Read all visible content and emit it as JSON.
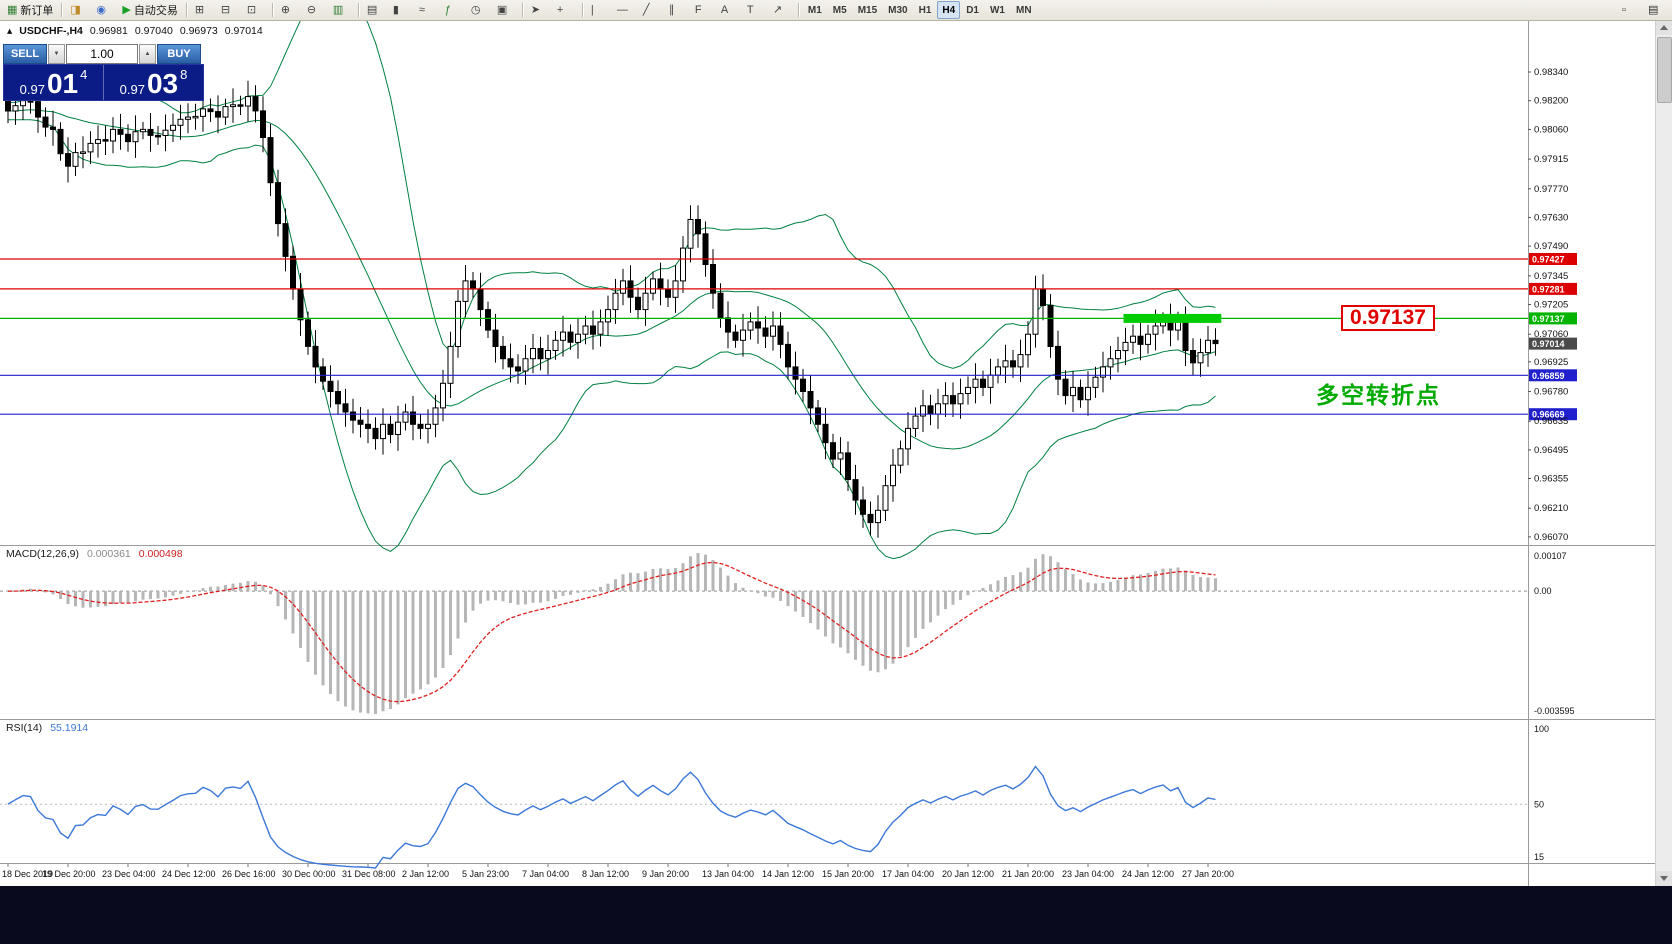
{
  "toolbar": {
    "items": [
      {
        "type": "button",
        "name": "new-order-button",
        "glyph": "▦",
        "glyph_color": "#2f7d32",
        "label": "新订单"
      },
      {
        "type": "sep"
      },
      {
        "type": "button",
        "name": "layout-profile-icon",
        "glyph": "◨",
        "glyph_color": "#c08a28"
      },
      {
        "type": "button",
        "name": "refresh-icon",
        "glyph": "◉",
        "glyph_color": "#3a6cc8"
      },
      {
        "type": "button",
        "name": "autotrading-button",
        "glyph": "▶",
        "glyph_color": "#18a028",
        "label": "自动交易"
      },
      {
        "type": "sep"
      },
      {
        "type": "button",
        "name": "tile-windows-icon",
        "glyph": "⊞",
        "glyph_color": "#444444"
      },
      {
        "type": "button",
        "name": "cascade-windows-icon",
        "glyph": "⊟",
        "glyph_color": "#444444"
      },
      {
        "type": "button",
        "name": "arrange-windows-icon",
        "glyph": "⊡",
        "glyph_color": "#444444"
      },
      {
        "type": "sep"
      },
      {
        "type": "button",
        "name": "zoom-in-icon",
        "glyph": "⊕",
        "glyph_color": "#444444"
      },
      {
        "type": "button",
        "name": "zoom-out-icon",
        "glyph": "⊖",
        "glyph_color": "#444444"
      },
      {
        "type": "button",
        "name": "auto-scroll-icon",
        "glyph": "▥",
        "glyph_color": "#2f7d32"
      },
      {
        "type": "sep"
      },
      {
        "type": "button",
        "name": "bar-chart-icon",
        "glyph": "▤",
        "glyph_color": "#444444"
      },
      {
        "type": "button",
        "name": "candlestick-chart-icon",
        "glyph": "▮",
        "glyph_color": "#444444"
      },
      {
        "type": "button",
        "name": "line-chart-icon",
        "glyph": "≈",
        "glyph_color": "#444444"
      },
      {
        "type": "button",
        "name": "indicators-icon",
        "glyph": "ƒ",
        "glyph_color": "#2f7d32"
      },
      {
        "type": "button",
        "name": "periods-icon",
        "glyph": "◷",
        "glyph_color": "#444444"
      },
      {
        "type": "button",
        "name": "templates-icon",
        "glyph": "▣",
        "glyph_color": "#444444"
      },
      {
        "type": "sep"
      },
      {
        "type": "button",
        "name": "cursor-icon",
        "glyph": "➤",
        "glyph_color": "#444444"
      },
      {
        "type": "button",
        "name": "crosshair-icon",
        "glyph": "+",
        "glyph_color": "#444444"
      },
      {
        "type": "sep"
      },
      {
        "type": "button",
        "name": "vertical-line-icon",
        "glyph": "|",
        "glyph_color": "#444444"
      },
      {
        "type": "button",
        "name": "horizontal-line-icon",
        "glyph": "—",
        "glyph_color": "#444444"
      },
      {
        "type": "button",
        "name": "trendline-icon",
        "glyph": "╱",
        "glyph_color": "#444444"
      },
      {
        "type": "button",
        "name": "channel-icon",
        "glyph": "∥",
        "glyph_color": "#444444"
      },
      {
        "type": "button",
        "name": "fibonacci-icon",
        "glyph": "F",
        "glyph_color": "#444444"
      },
      {
        "type": "button",
        "name": "text-icon",
        "glyph": "A",
        "glyph_color": "#444444"
      },
      {
        "type": "button",
        "name": "text-label-icon",
        "glyph": "T",
        "glyph_color": "#444444"
      },
      {
        "type": "button",
        "name": "arrow-tools-icon",
        "glyph": "↗",
        "glyph_color": "#444444"
      },
      {
        "type": "sep"
      }
    ],
    "timeframes": [
      "M1",
      "M5",
      "M15",
      "M30",
      "H1",
      "H4",
      "D1",
      "W1",
      "MN"
    ],
    "active_timeframe": "H4",
    "right_items": [
      {
        "name": "new-chart-window-icon",
        "glyph": "▫"
      },
      {
        "name": "window-list-icon",
        "glyph": "▤"
      }
    ]
  },
  "chart_header": {
    "collapse_glyph": "▴",
    "symbol": "USDCHF-,H4",
    "open": "0.96981",
    "high": "0.97040",
    "low": "0.96973",
    "close": "0.97014"
  },
  "trade_panel": {
    "sell_label": "SELL",
    "buy_label": "BUY",
    "volume": "1.00",
    "step_down_glyph": "▼",
    "step_up_glyph": "▲",
    "sell_small": "0.97",
    "sell_big": "01",
    "sell_sup": "4",
    "buy_small": "0.97",
    "buy_big": "03",
    "buy_sup": "8"
  },
  "price_axis": {
    "labels": [
      "0.98340",
      "0.98200",
      "0.98060",
      "0.97915",
      "0.97770",
      "0.97630",
      "0.97490",
      "0.97345",
      "0.97205",
      "0.97060",
      "0.96925",
      "0.96780",
      "0.96635",
      "0.96495",
      "0.96355",
      "0.96210",
      "0.96070"
    ]
  },
  "time_axis": {
    "labels": [
      "18 Dec 2019",
      "19 Dec 20:00",
      "23 Dec 04:00",
      "24 Dec 12:00",
      "26 Dec 16:00",
      "30 Dec 00:00",
      "31 Dec 08:00",
      "2 Jan 12:00",
      "5 Jan 23:00",
      "7 Jan 04:00",
      "8 Jan 12:00",
      "9 Jan 20:00",
      "13 Jan 04:00",
      "14 Jan 12:00",
      "15 Jan 20:00",
      "17 Jan 04:00",
      "20 Jan 12:00",
      "21 Jan 20:00",
      "23 Jan 04:00",
      "24 Jan 12:00",
      "27 Jan 20:00"
    ]
  },
  "macd": {
    "name": "MACD(12,26,9)",
    "main_value": "0.000361",
    "signal_value": "0.000498",
    "axis_labels": [
      "0.00107",
      "0.00",
      "-0.003595"
    ]
  },
  "rsi": {
    "name": "RSI(14)",
    "value": "55.1914",
    "axis_labels": [
      "100",
      "50",
      "15"
    ]
  },
  "annotations": {
    "big_price_label": "0.97137",
    "cn_note": "多空转折点"
  },
  "chart_data": {
    "type": "candlestick",
    "symbol": "USDCHF",
    "timeframe": "H4",
    "bars": 162,
    "visible_price_range": [
      0.9605,
      0.98555
    ],
    "last_quote": {
      "bid": 0.97014,
      "label": "0.97014",
      "tag_color": "#4a4a4a"
    },
    "horizontal_lines": [
      {
        "price": 0.97427,
        "label": "0.97427",
        "color": "#dd0000"
      },
      {
        "price": 0.97281,
        "label": "0.97281",
        "color": "#dd0000"
      },
      {
        "price": 0.97137,
        "label": "0.97137",
        "color": "#00b400"
      },
      {
        "price": 0.96859,
        "label": "0.96859",
        "color": "#2020cc"
      },
      {
        "price": 0.96669,
        "label": "0.96669",
        "color": "#2020cc"
      }
    ],
    "highlight": {
      "price": 0.97137,
      "from_bar": 149,
      "to_bar": 161.5,
      "color": "#00cc00",
      "thickness": 9
    },
    "indicators": [
      {
        "type": "bollinger_bands",
        "period": 20,
        "deviation": 2,
        "color": "#008040"
      },
      {
        "type": "macd",
        "fast": 12,
        "slow": 26,
        "signal": 9,
        "main_color": "#b6b6b6",
        "signal_color": "#e02020",
        "values": [
          0.000361,
          0.000498
        ]
      },
      {
        "type": "rsi",
        "period": 14,
        "color": "#3c78d8",
        "value": 55.1914
      }
    ],
    "close_anchors": [
      [
        0,
        0.9815
      ],
      [
        2,
        0.982
      ],
      [
        4,
        0.9812
      ],
      [
        6,
        0.9806
      ],
      [
        8,
        0.9788
      ],
      [
        10,
        0.9795
      ],
      [
        12,
        0.9801
      ],
      [
        14,
        0.9806
      ],
      [
        16,
        0.98
      ],
      [
        18,
        0.9806
      ],
      [
        20,
        0.9803
      ],
      [
        22,
        0.9808
      ],
      [
        24,
        0.9812
      ],
      [
        26,
        0.9816
      ],
      [
        28,
        0.9812
      ],
      [
        30,
        0.9818
      ],
      [
        32,
        0.9822
      ],
      [
        33,
        0.9815
      ],
      [
        34,
        0.9802
      ],
      [
        35,
        0.978
      ],
      [
        36,
        0.976
      ],
      [
        37,
        0.9744
      ],
      [
        38,
        0.9728
      ],
      [
        39,
        0.9713
      ],
      [
        40,
        0.97
      ],
      [
        41,
        0.969
      ],
      [
        42,
        0.9683
      ],
      [
        43,
        0.9678
      ],
      [
        44,
        0.9672
      ],
      [
        45,
        0.9668
      ],
      [
        46,
        0.9664
      ],
      [
        47,
        0.9662
      ],
      [
        48,
        0.966
      ],
      [
        49,
        0.9655
      ],
      [
        50,
        0.9662
      ],
      [
        51,
        0.9657
      ],
      [
        52,
        0.9663
      ],
      [
        53,
        0.9668
      ],
      [
        54,
        0.9662
      ],
      [
        55,
        0.966
      ],
      [
        56,
        0.9662
      ],
      [
        57,
        0.967
      ],
      [
        58,
        0.9682
      ],
      [
        59,
        0.97
      ],
      [
        60,
        0.9722
      ],
      [
        61,
        0.9732
      ],
      [
        62,
        0.9728
      ],
      [
        63,
        0.9718
      ],
      [
        64,
        0.9708
      ],
      [
        65,
        0.97
      ],
      [
        66,
        0.9694
      ],
      [
        67,
        0.969
      ],
      [
        68,
        0.9688
      ],
      [
        69,
        0.9694
      ],
      [
        70,
        0.9699
      ],
      [
        71,
        0.9694
      ],
      [
        72,
        0.9698
      ],
      [
        73,
        0.9703
      ],
      [
        74,
        0.9707
      ],
      [
        75,
        0.9702
      ],
      [
        76,
        0.9706
      ],
      [
        77,
        0.971
      ],
      [
        78,
        0.9706
      ],
      [
        79,
        0.9712
      ],
      [
        80,
        0.9718
      ],
      [
        81,
        0.9726
      ],
      [
        82,
        0.9732
      ],
      [
        83,
        0.9724
      ],
      [
        84,
        0.9718
      ],
      [
        85,
        0.9726
      ],
      [
        86,
        0.9733
      ],
      [
        87,
        0.9728
      ],
      [
        88,
        0.9724
      ],
      [
        89,
        0.9732
      ],
      [
        90,
        0.9748
      ],
      [
        91,
        0.9762
      ],
      [
        92,
        0.9755
      ],
      [
        93,
        0.974
      ],
      [
        94,
        0.9726
      ],
      [
        95,
        0.9714
      ],
      [
        96,
        0.9707
      ],
      [
        97,
        0.9703
      ],
      [
        98,
        0.9708
      ],
      [
        99,
        0.9712
      ],
      [
        100,
        0.9709
      ],
      [
        101,
        0.9705
      ],
      [
        102,
        0.971
      ],
      [
        103,
        0.9701
      ],
      [
        104,
        0.969
      ],
      [
        105,
        0.9684
      ],
      [
        106,
        0.9678
      ],
      [
        107,
        0.967
      ],
      [
        108,
        0.9662
      ],
      [
        109,
        0.9653
      ],
      [
        110,
        0.9645
      ],
      [
        111,
        0.9648
      ],
      [
        112,
        0.9635
      ],
      [
        113,
        0.9625
      ],
      [
        114,
        0.9618
      ],
      [
        115,
        0.9614
      ],
      [
        116,
        0.962
      ],
      [
        117,
        0.9632
      ],
      [
        118,
        0.9642
      ],
      [
        119,
        0.965
      ],
      [
        120,
        0.966
      ],
      [
        121,
        0.9666
      ],
      [
        122,
        0.9671
      ],
      [
        123,
        0.9667
      ],
      [
        124,
        0.9672
      ],
      [
        125,
        0.9676
      ],
      [
        126,
        0.9672
      ],
      [
        127,
        0.9677
      ],
      [
        128,
        0.968
      ],
      [
        129,
        0.9684
      ],
      [
        130,
        0.968
      ],
      [
        131,
        0.9686
      ],
      [
        132,
        0.969
      ],
      [
        133,
        0.9693
      ],
      [
        134,
        0.969
      ],
      [
        135,
        0.9696
      ],
      [
        136,
        0.9706
      ],
      [
        137,
        0.9728
      ],
      [
        138,
        0.972
      ],
      [
        139,
        0.97
      ],
      [
        140,
        0.9684
      ],
      [
        141,
        0.9676
      ],
      [
        142,
        0.968
      ],
      [
        143,
        0.9674
      ],
      [
        144,
        0.968
      ],
      [
        145,
        0.9685
      ],
      [
        146,
        0.969
      ],
      [
        147,
        0.9694
      ],
      [
        148,
        0.9698
      ],
      [
        149,
        0.9702
      ],
      [
        150,
        0.9705
      ],
      [
        151,
        0.9701
      ],
      [
        152,
        0.9706
      ],
      [
        153,
        0.971
      ],
      [
        154,
        0.9713
      ],
      [
        155,
        0.9708
      ],
      [
        156,
        0.9712
      ],
      [
        157,
        0.9698
      ],
      [
        158,
        0.9692
      ],
      [
        159,
        0.9697
      ],
      [
        160,
        0.9703
      ],
      [
        161,
        0.97014
      ]
    ]
  }
}
